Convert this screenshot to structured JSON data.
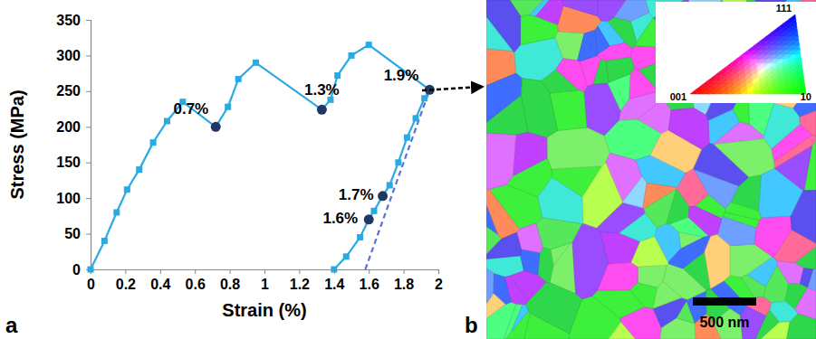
{
  "chart_data": {
    "type": "line",
    "panel_label": "a",
    "x_label": "Strain (%)",
    "y_label": "Stress (MPa)",
    "xlim": [
      0,
      2
    ],
    "ylim": [
      0,
      350
    ],
    "xticks": [
      0,
      0.2,
      0.4,
      0.6,
      0.8,
      1,
      1.2,
      1.4,
      1.6,
      1.8,
      2
    ],
    "yticks": [
      0,
      50,
      100,
      150,
      200,
      250,
      300,
      350
    ],
    "grid": false,
    "series": [
      {
        "type": "line",
        "color": "#5a6fd8",
        "line_style": "dashed",
        "x": [
          1.58,
          1.95
        ],
        "values": [
          0,
          252
        ]
      },
      {
        "type": "line",
        "color": "#29abe2",
        "marker": "square",
        "line_style": "solid",
        "x": [
          0,
          0.08,
          0.15,
          0.21,
          0.28,
          0.36,
          0.44,
          0.53,
          0.72,
          0.79,
          0.85,
          0.95,
          1.33,
          1.38,
          1.42,
          1.5,
          1.6,
          1.95,
          1.92,
          1.87,
          1.82,
          1.77,
          1.72,
          1.68,
          1.63,
          1.6,
          1.55,
          1.47,
          1.4
        ],
        "values": [
          0,
          40,
          80,
          112,
          140,
          178,
          208,
          235,
          200,
          228,
          267,
          290,
          224,
          238,
          272,
          300,
          315,
          252,
          240,
          212,
          185,
          150,
          118,
          103,
          82,
          70,
          45,
          18,
          0
        ]
      },
      {
        "type": "scatter",
        "color": "#1f3864",
        "marker": "circle",
        "x": [
          0.72,
          1.33,
          1.95,
          1.68,
          1.6
        ],
        "values": [
          200,
          224,
          252,
          103,
          70
        ]
      }
    ],
    "annotations": [
      {
        "text": "0.7%",
        "x": 0.72,
        "y": 200
      },
      {
        "text": "1.3%",
        "x": 1.33,
        "y": 224
      },
      {
        "text": "1.9%",
        "x": 1.95,
        "y": 252
      },
      {
        "text": "1.7%",
        "x": 1.68,
        "y": 103
      },
      {
        "text": "1.6%",
        "x": 1.6,
        "y": 70
      }
    ]
  },
  "image_panel": {
    "panel_label": "b",
    "scale_bar": "500 nm",
    "inset_labels": [
      "111",
      "001",
      "10"
    ]
  }
}
